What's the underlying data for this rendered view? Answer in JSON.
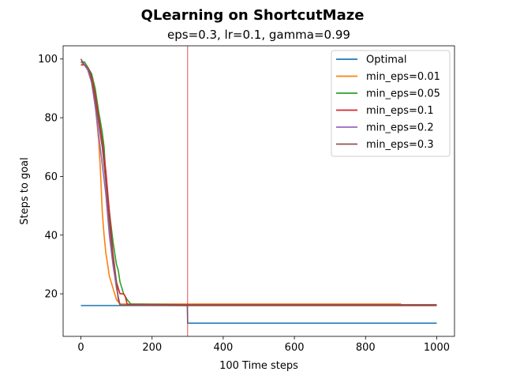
{
  "chart_data": {
    "type": "line",
    "title": "QLearning on ShortcutMaze",
    "subtitle": "eps=0.3, lr=0.1, gamma=0.99",
    "xlabel": "100 Time steps",
    "ylabel": "Steps to goal",
    "xlim": [
      -50,
      1050
    ],
    "ylim": [
      5.5,
      104.5
    ],
    "xticks": [
      0,
      200,
      400,
      600,
      800,
      1000
    ],
    "yticks": [
      20,
      40,
      60,
      80,
      100
    ],
    "grid": false,
    "legend_position": "top-right",
    "vline": {
      "x": 300,
      "color": "#d62728"
    },
    "series": [
      {
        "name": "Optimal",
        "color": "#1f77b4",
        "x": [
          0,
          299,
          300,
          1000
        ],
        "y": [
          16,
          16,
          10,
          10
        ]
      },
      {
        "name": "min_eps=0.01",
        "color": "#ff7f0e",
        "x": [
          0,
          10,
          20,
          30,
          40,
          50,
          55,
          60,
          65,
          70,
          75,
          80,
          90,
          100,
          110,
          130,
          300,
          600,
          900
        ],
        "y": [
          99,
          98,
          96,
          92,
          85,
          72,
          62,
          48,
          40,
          34,
          30,
          26,
          22,
          18,
          16.5,
          16.5,
          16.5,
          16.5,
          16.5
        ]
      },
      {
        "name": "min_eps=0.05",
        "color": "#2ca02c",
        "x": [
          0,
          10,
          20,
          30,
          40,
          50,
          60,
          65,
          70,
          80,
          90,
          100,
          105,
          110,
          120,
          130,
          140,
          300,
          600,
          1000
        ],
        "y": [
          99,
          99,
          97,
          95,
          90,
          82,
          75,
          70,
          60,
          48,
          38,
          30,
          28,
          24,
          20,
          18,
          16.5,
          16.3,
          16.3,
          16.3
        ]
      },
      {
        "name": "min_eps=0.1",
        "color": "#d62728",
        "x": [
          0,
          10,
          20,
          30,
          40,
          50,
          60,
          70,
          80,
          90,
          100,
          110,
          120,
          125,
          130,
          300,
          600,
          1000
        ],
        "y": [
          98,
          98,
          97,
          94,
          88,
          80,
          72,
          62,
          48,
          34,
          24,
          20,
          20,
          19,
          16.4,
          16.2,
          16.2,
          16.2
        ]
      },
      {
        "name": "min_eps=0.2",
        "color": "#9467bd",
        "x": [
          0,
          10,
          20,
          30,
          40,
          50,
          60,
          70,
          80,
          90,
          95,
          100,
          110,
          300,
          600,
          1000
        ],
        "y": [
          99,
          98,
          96,
          92,
          84,
          74,
          64,
          54,
          40,
          30,
          26,
          22,
          16.2,
          16.0,
          16.0,
          16.0
        ]
      },
      {
        "name": "min_eps=0.3",
        "color": "#8c564b",
        "x": [
          0,
          10,
          20,
          30,
          40,
          50,
          60,
          70,
          80,
          90,
          100,
          105,
          110,
          300,
          600,
          1000
        ],
        "y": [
          100,
          98,
          97,
          93,
          86,
          78,
          70,
          58,
          44,
          32,
          24,
          18,
          16.2,
          16.0,
          16.0,
          16.0
        ]
      }
    ]
  }
}
